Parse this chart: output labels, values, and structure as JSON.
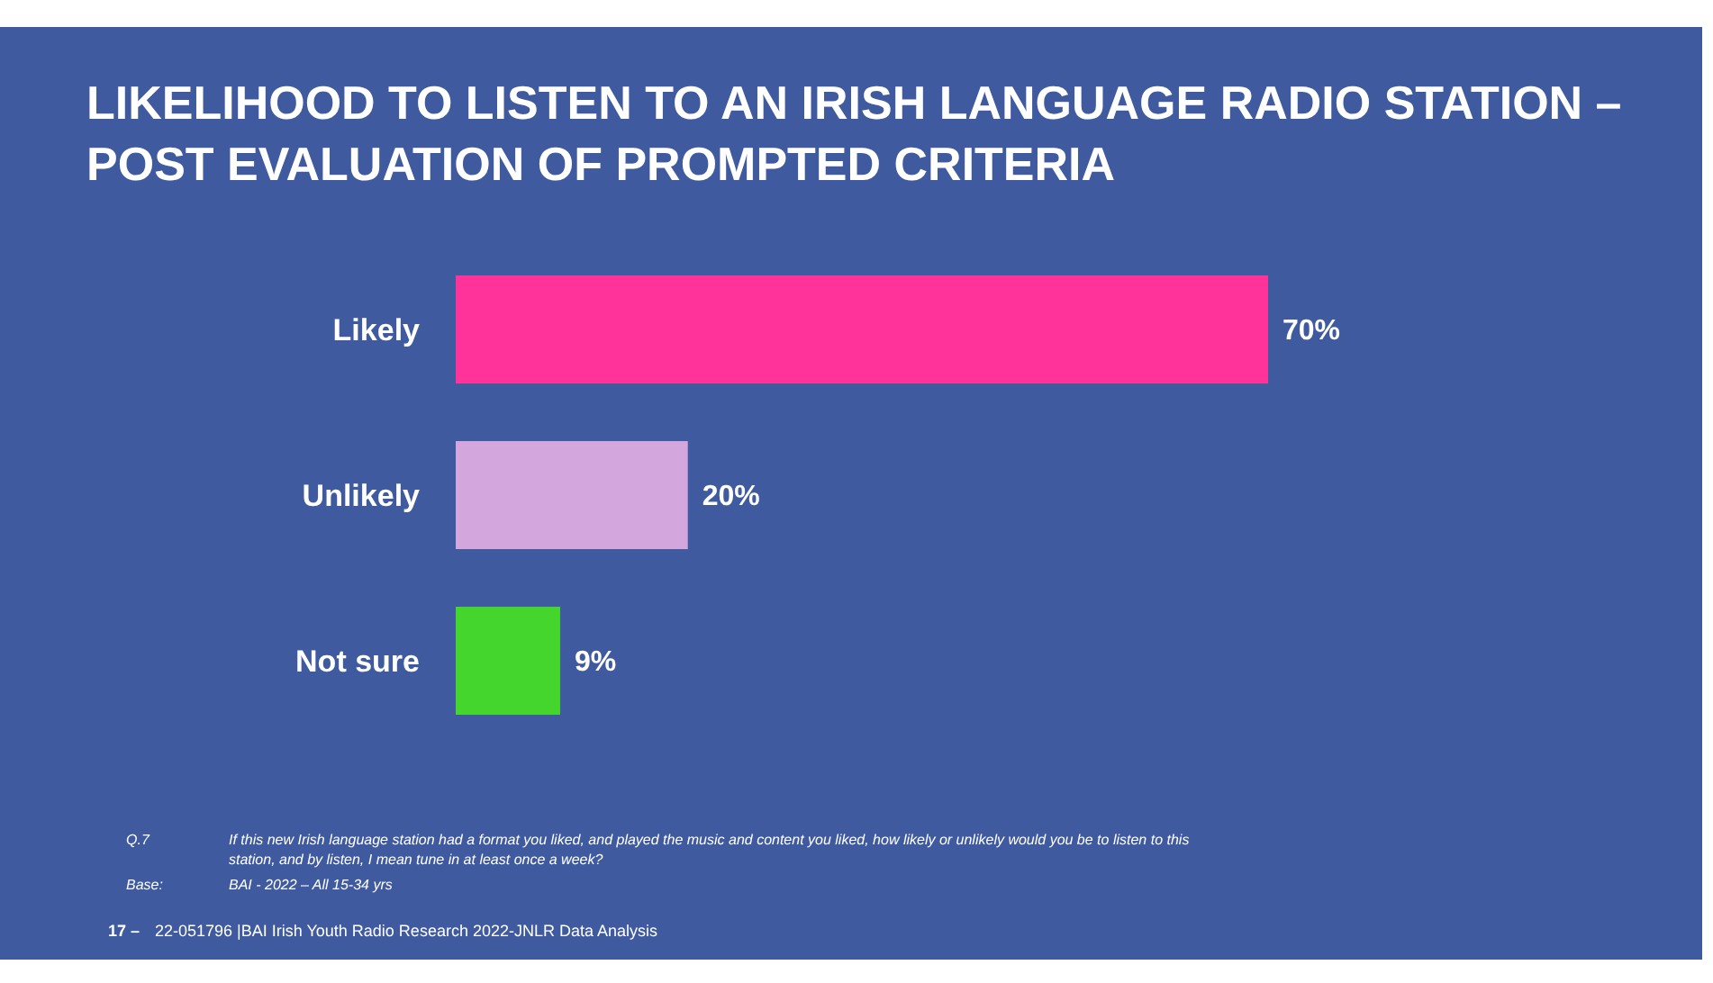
{
  "chart_data": {
    "type": "bar",
    "orientation": "horizontal",
    "title": "LIKELIHOOD TO LISTEN TO AN IRISH LANGUAGE RADIO STATION – POST EVALUATION OF PROMPTED CRITERIA",
    "categories": [
      "Likely",
      "Unlikely",
      "Not sure"
    ],
    "values": [
      70,
      20,
      9
    ],
    "colors": [
      "#ff3399",
      "#d4a6de",
      "#44d62c"
    ],
    "value_labels": [
      "70%",
      "20%",
      "9%"
    ],
    "tick_labels": "y",
    "grid": false,
    "legend": false,
    "annotations": [
      "Q.7",
      "If this new Irish language  station had a format you liked, and played  the music and content you liked, how  likely or unlikely would  you be to listen to this station, and by listen, I mean tune in at least once a week?",
      "Base:",
      "BAI - 2022 – All 15-34 yrs",
      "17 –",
      "22-051796 |BAI Irish Youth Radio Research 2022-JNLR Data Analysis"
    ]
  }
}
